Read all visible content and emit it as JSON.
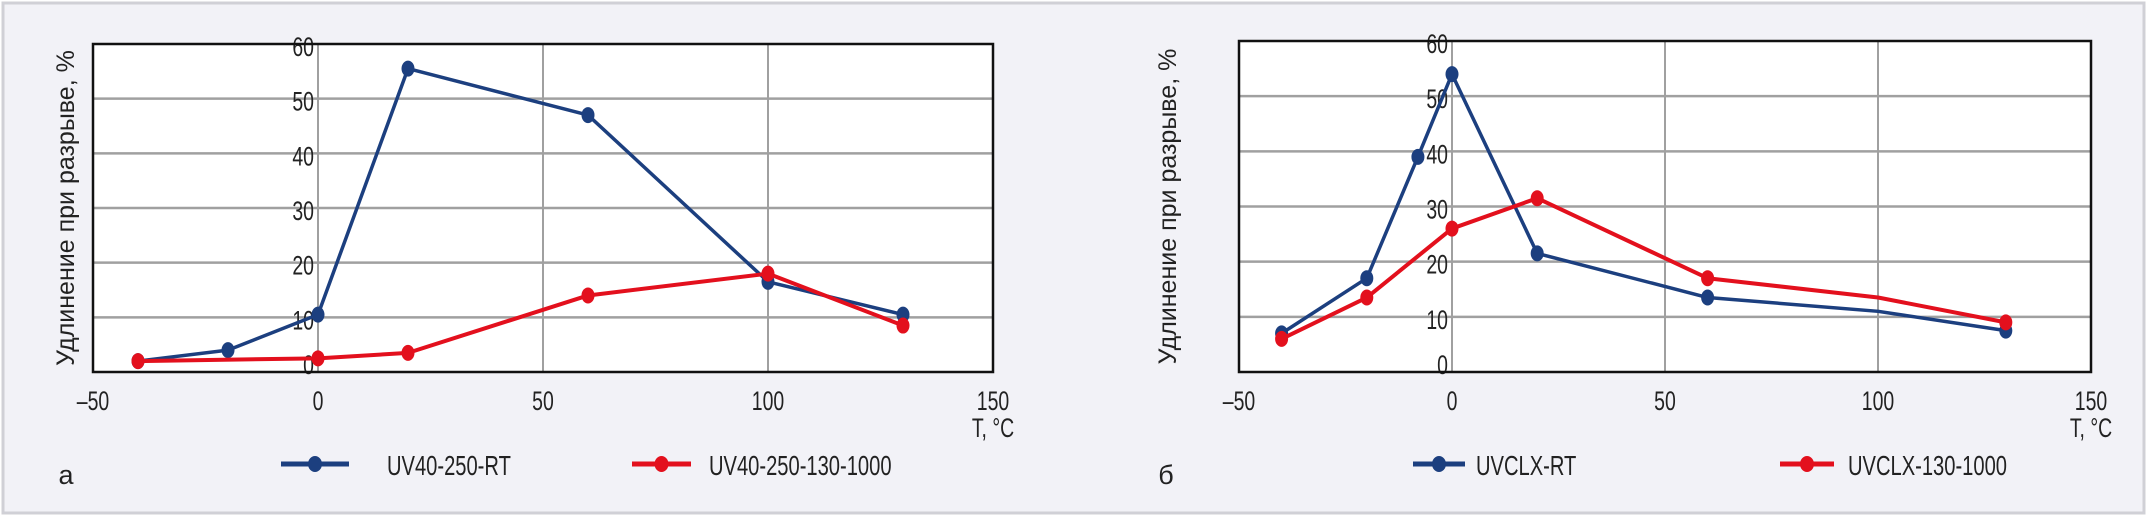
{
  "chart_data": [
    {
      "type": "line",
      "panel_label": "а",
      "ylabel": "Удлинение при разрыве, %",
      "xlabel": "T, °C",
      "xlim": [
        -50,
        150
      ],
      "ylim": [
        0,
        60
      ],
      "xticks": [
        "–50",
        "0",
        "50",
        "100",
        "150"
      ],
      "yticks": [
        "0",
        "10",
        "20",
        "30",
        "40",
        "50",
        "60"
      ],
      "grid": true,
      "legend_position": "bottom",
      "series": [
        {
          "name": "UV40-250-RT",
          "color": "#1c3f7f",
          "x": [
            -40,
            -20,
            0,
            20,
            60,
            100,
            130
          ],
          "y": [
            2,
            4,
            10.5,
            55.5,
            47,
            16.5,
            10.5
          ],
          "markers": [
            true,
            true,
            true,
            true,
            true,
            true,
            true
          ]
        },
        {
          "name": "UV40-250-130-1000",
          "color": "#e3101d",
          "x": [
            -40,
            0,
            20,
            60,
            100,
            130
          ],
          "y": [
            2,
            2.5,
            3.5,
            14,
            18,
            8.5
          ],
          "markers": [
            true,
            true,
            true,
            true,
            true,
            true
          ]
        }
      ]
    },
    {
      "type": "line",
      "panel_label": "б",
      "ylabel": "Удлинение при разрыве, %",
      "xlabel": "T, °C",
      "xlim": [
        -50,
        150
      ],
      "ylim": [
        0,
        60
      ],
      "xticks": [
        "–50",
        "0",
        "50",
        "100",
        "150"
      ],
      "yticks": [
        "0",
        "10",
        "20",
        "30",
        "40",
        "50",
        "60"
      ],
      "grid": true,
      "legend_position": "bottom",
      "series": [
        {
          "name": "UVCLX-RT",
          "color": "#1c3f7f",
          "x": [
            -40,
            -20,
            -8,
            0,
            20,
            60,
            100,
            130
          ],
          "y": [
            7,
            17,
            39,
            54,
            21.5,
            13.5,
            11,
            7.5
          ],
          "markers": [
            true,
            true,
            true,
            true,
            true,
            true,
            false,
            true
          ]
        },
        {
          "name": "UVCLX-130-1000",
          "color": "#e3101d",
          "x": [
            -40,
            -20,
            0,
            20,
            60,
            100,
            130
          ],
          "y": [
            6,
            13.5,
            26,
            31.5,
            17,
            13.5,
            9
          ],
          "markers": [
            true,
            true,
            true,
            true,
            true,
            false,
            true
          ]
        }
      ]
    }
  ]
}
